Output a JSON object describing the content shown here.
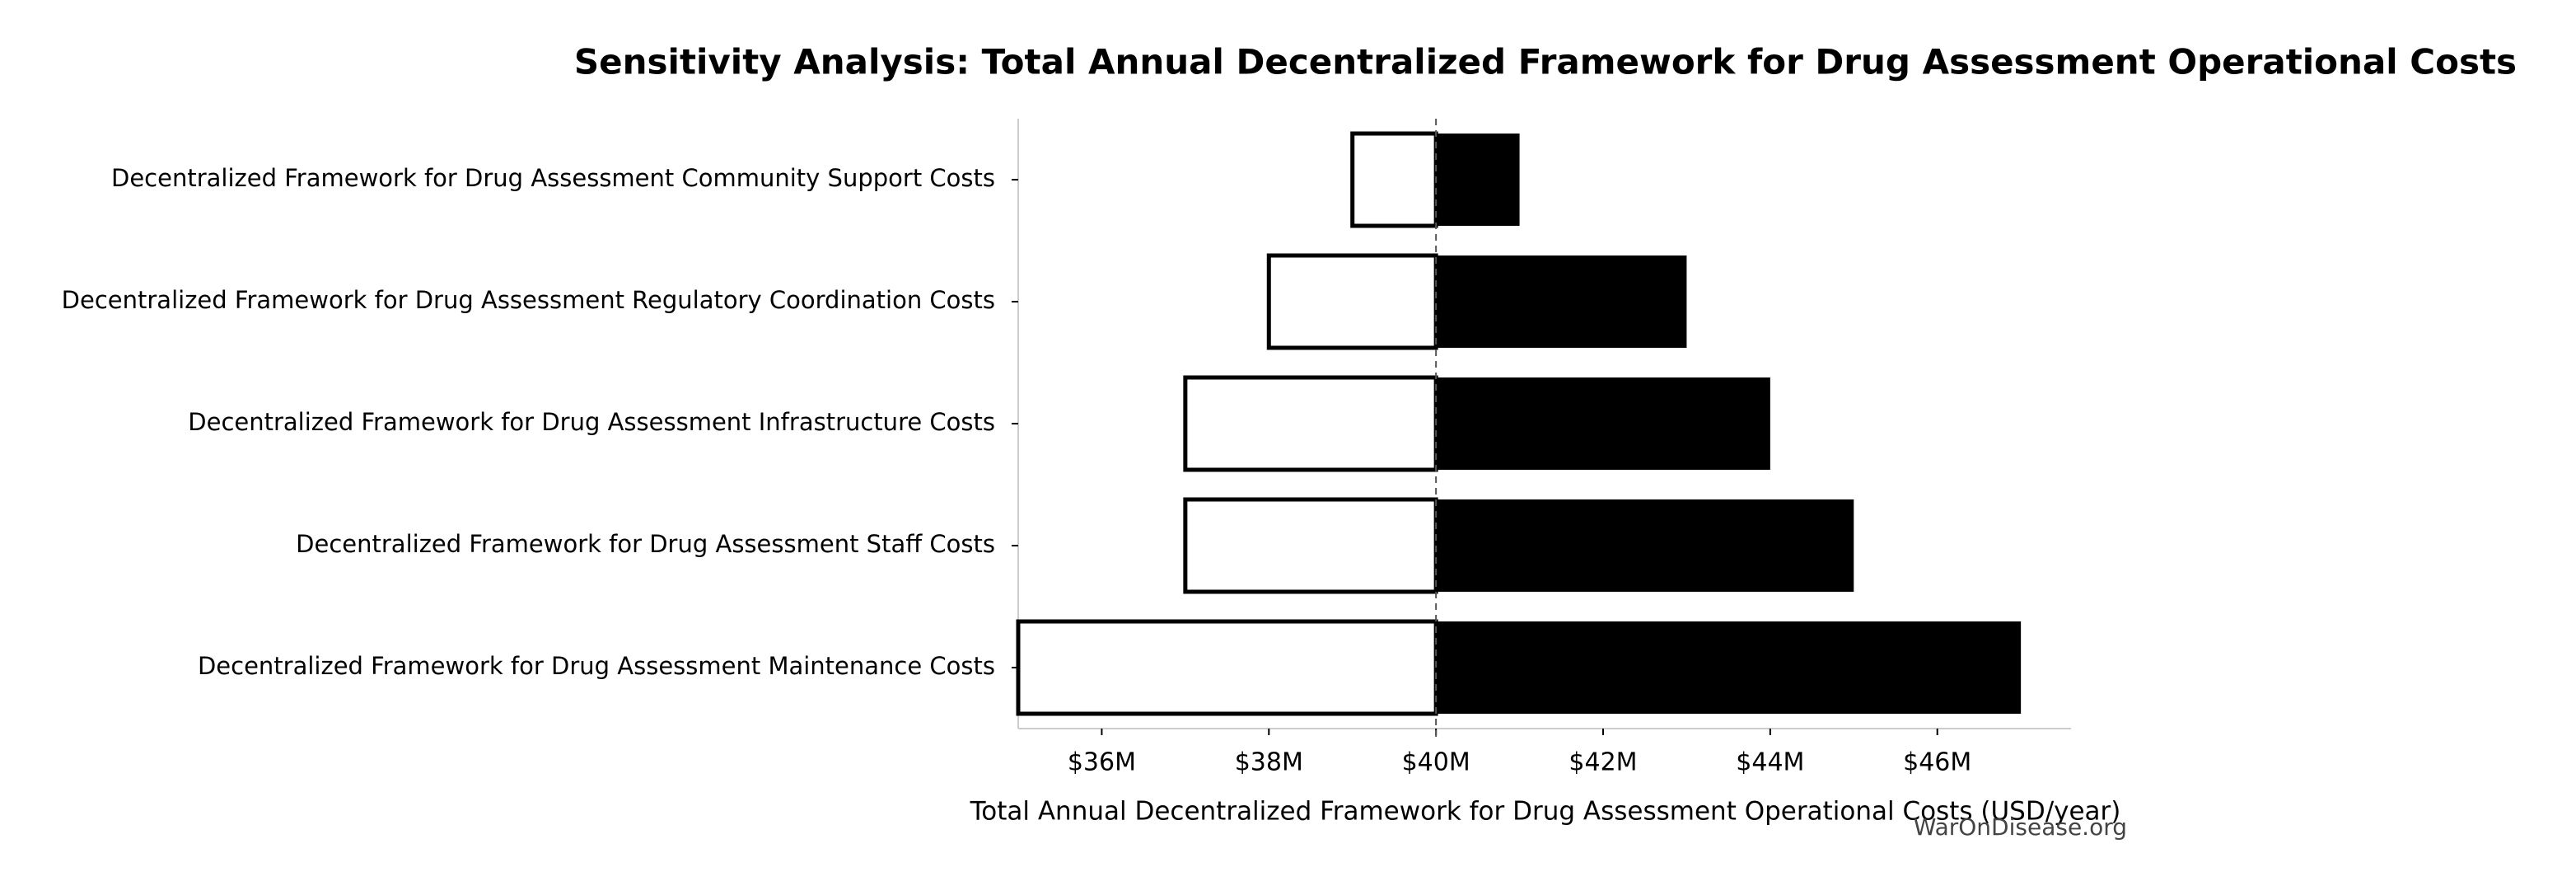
{
  "chart_data": {
    "type": "tornado",
    "title": "Sensitivity Analysis: Total Annual Decentralized Framework for Drug Assessment Operational Costs",
    "x_label": "Total Annual Decentralized Framework for Drug Assessment Operational Costs (USD/year)",
    "watermark": "WarOnDisease.org",
    "categories": [
      "Decentralized Framework for Drug Assessment Community Support Costs",
      "Decentralized Framework for Drug Assessment Regulatory Coordination Costs",
      "Decentralized Framework for Drug Assessment Infrastructure Costs",
      "Decentralized Framework for Drug Assessment Staff Costs",
      "Decentralized Framework for Drug Assessment Maintenance Costs"
    ],
    "baseline": 40,
    "series": [
      {
        "color": "#ffffff",
        "stroke": "#000000",
        "values": [
          39,
          38,
          37,
          37,
          35
        ]
      },
      {
        "color": "#000000",
        "values": [
          41,
          43,
          44,
          45,
          47
        ]
      }
    ],
    "xlim": [
      35,
      47.6
    ],
    "xticks": [
      {
        "value": 36,
        "label": "$36M"
      },
      {
        "value": 38,
        "label": "$38M"
      },
      {
        "value": 40,
        "label": "$40M"
      },
      {
        "value": 42,
        "label": "$42M"
      },
      {
        "value": 44,
        "label": "$44M"
      },
      {
        "value": 46,
        "label": "$46M"
      }
    ]
  }
}
